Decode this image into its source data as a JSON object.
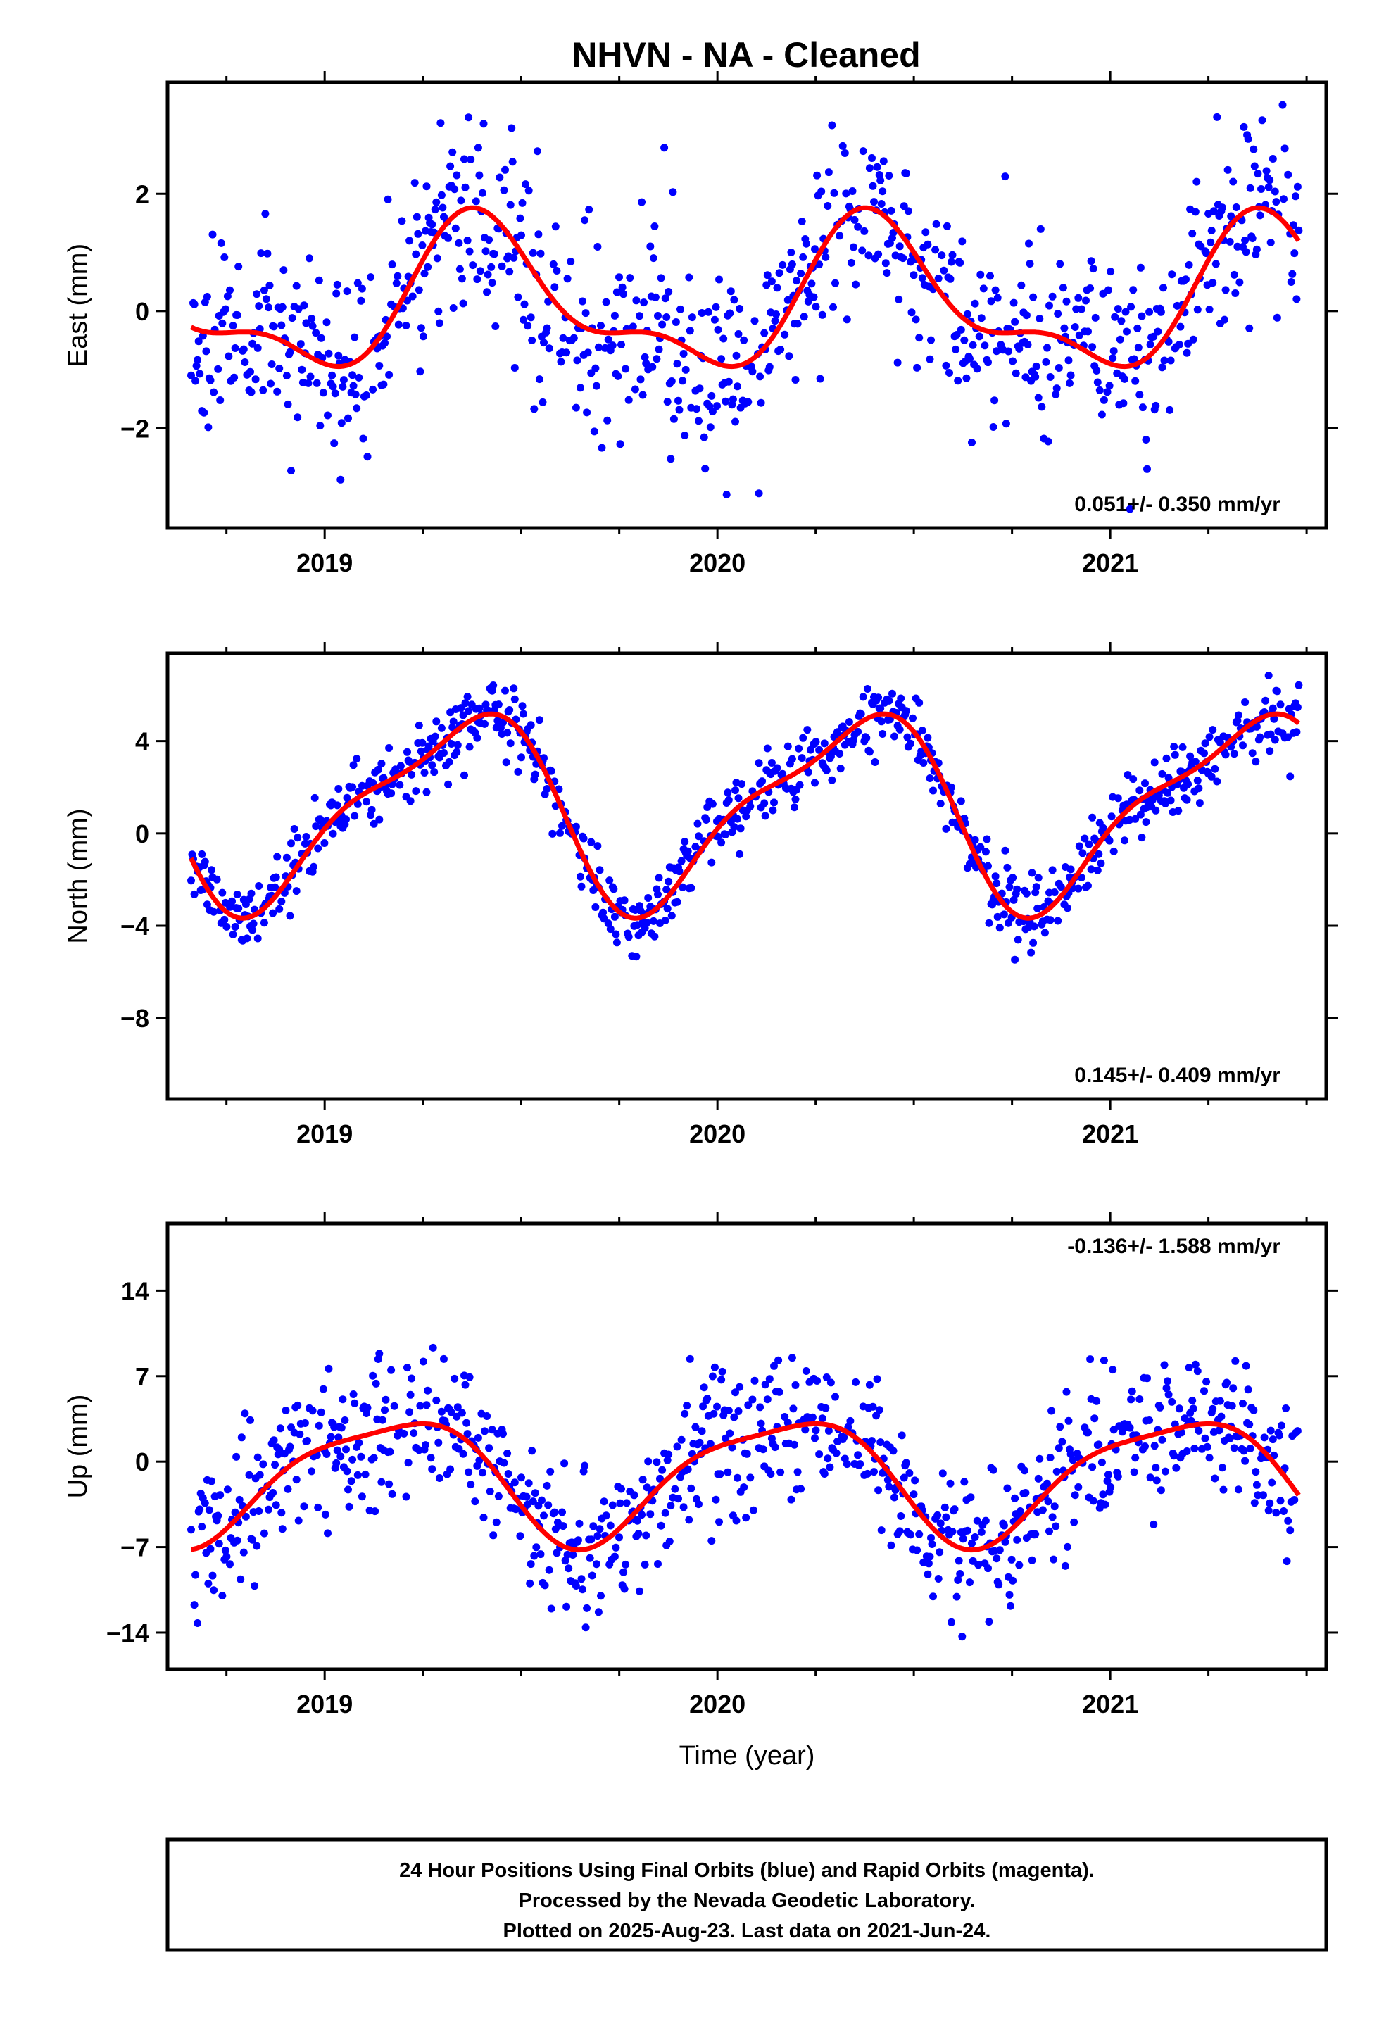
{
  "title": "NHVN  - NA - Cleaned",
  "colors": {
    "points": "#0000ff",
    "fit": "#ff0000",
    "frame": "#000000"
  },
  "chart_data": [
    {
      "type": "scatter",
      "ylabel": "East (mm)",
      "xlabel": "",
      "rate": "0.051+/- 0.350 mm/yr",
      "rate_position": "bottom-right",
      "xlim": [
        2018.6,
        2021.55
      ],
      "ylim": [
        -3.7,
        3.9
      ],
      "xticks": [
        "2019",
        "2020",
        "2021"
      ],
      "yticks": [
        -2,
        0,
        2
      ],
      "yticklabels": [
        "−2",
        "0",
        "2"
      ],
      "series": [
        {
          "type": "scatter"
        },
        {
          "type": "line"
        }
      ],
      "fit": {
        "offset": 0.15,
        "annual": [
          0.62,
          -0.95
        ],
        "semiannual": [
          -0.5,
          -0.1
        ]
      },
      "scatter_sd": 1.15,
      "seed": 11
    },
    {
      "type": "scatter",
      "ylabel": "North (mm)",
      "xlabel": "",
      "rate": "0.145+/- 0.409 mm/yr",
      "rate_position": "bottom-right",
      "xlim": [
        2018.6,
        2021.55
      ],
      "ylim": [
        -11.5,
        7.8
      ],
      "xticks": [
        "2019",
        "2020",
        "2021"
      ],
      "yticks": [
        -8,
        -4,
        0,
        4
      ],
      "yticklabels": [
        "−8",
        "−4",
        "0",
        "4"
      ],
      "series": [
        {
          "type": "scatter"
        },
        {
          "type": "line"
        }
      ],
      "fit": {
        "offset": 1.1,
        "annual": [
          3.3,
          -2.1
        ],
        "semiannual": [
          0.0,
          1.2
        ]
      },
      "scatter_sd": 1.0,
      "seed": 23
    },
    {
      "type": "scatter",
      "ylabel": "Up (mm)",
      "xlabel": "Time (year)",
      "rate": "-0.136+/- 1.588 mm/yr",
      "rate_position": "top-right",
      "xlim": [
        2018.6,
        2021.55
      ],
      "ylim": [
        -17,
        19.5
      ],
      "xticks": [
        "2019",
        "2020",
        "2021"
      ],
      "yticks": [
        -14,
        -7,
        0,
        7,
        14
      ],
      "yticklabels": [
        "−14",
        "−7",
        "0",
        "7",
        "14"
      ],
      "series": [
        {
          "type": "scatter"
        },
        {
          "type": "line"
        }
      ],
      "fit": {
        "offset": -1.2,
        "annual": [
          4.3,
          2.4
        ],
        "semiannual": [
          -1.2,
          0.0
        ]
      },
      "scatter_sd": 4.0,
      "seed": 37
    }
  ],
  "footer": {
    "line1": "24 Hour Positions Using Final Orbits (blue) and Rapid Orbits (magenta).",
    "line2": "Processed by the Nevada Geodetic Laboratory.",
    "line3": "Plotted on 2025-Aug-23. Last data on 2021-Jun-24."
  }
}
